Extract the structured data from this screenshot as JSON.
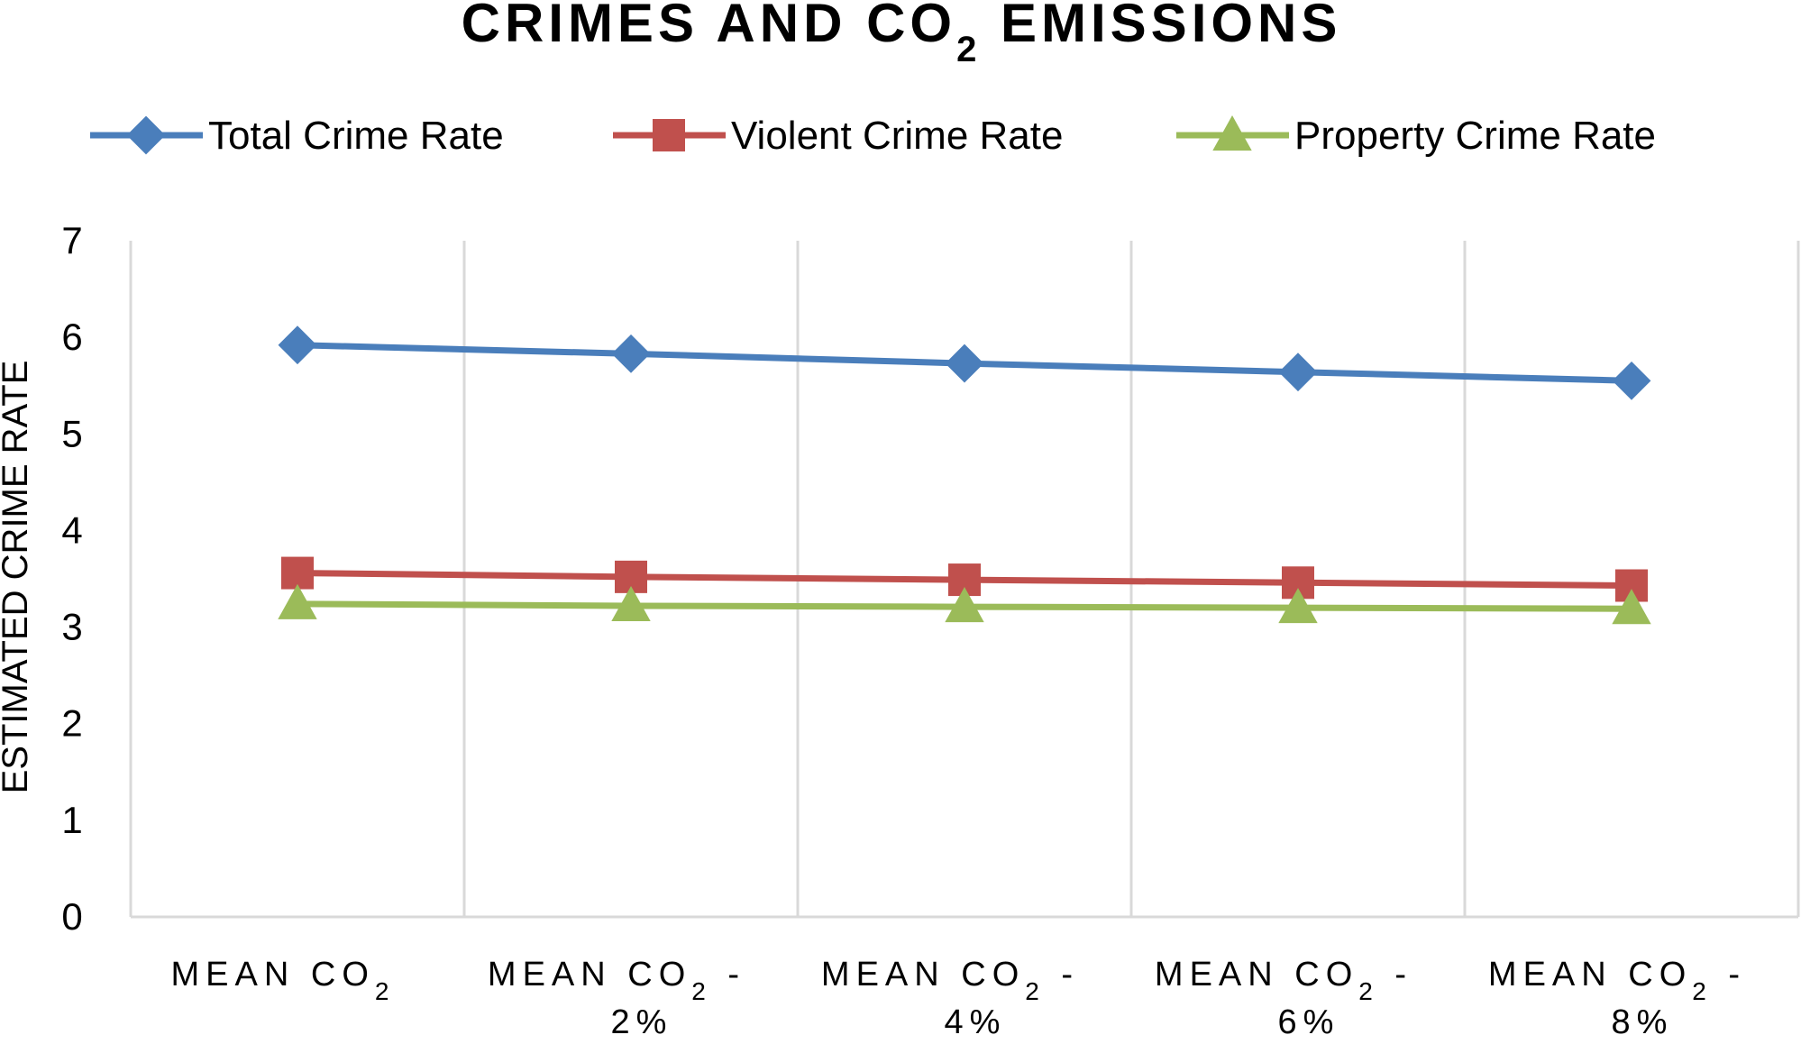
{
  "chart_data": {
    "type": "line",
    "title": {
      "main": "CRIMES AND CO",
      "sub": "2",
      "rest": " EMISSIONS"
    },
    "xlabel": "",
    "ylabel": "ESTIMATED CRIME RATE",
    "ylim": [
      0,
      7
    ],
    "yticks": [
      0,
      1,
      2,
      3,
      4,
      5,
      6,
      7
    ],
    "grid": "vertical",
    "legend_position": "top",
    "categories": [
      {
        "line1": "MEAN CO",
        "sub": "2",
        "tail": "",
        "line2": ""
      },
      {
        "line1": "MEAN CO",
        "sub": "2",
        "tail": " -",
        "line2": "2%"
      },
      {
        "line1": "MEAN CO",
        "sub": "2",
        "tail": " -",
        "line2": "4%"
      },
      {
        "line1": "MEAN CO",
        "sub": "2",
        "tail": " -",
        "line2": "6%"
      },
      {
        "line1": "MEAN CO",
        "sub": "2",
        "tail": " -",
        "line2": "8%"
      }
    ],
    "series": [
      {
        "name": "Total Crime Rate",
        "color": "#4A7EBB",
        "marker": "diamond",
        "values": [
          5.92,
          5.83,
          5.73,
          5.64,
          5.55
        ]
      },
      {
        "name": "Violent Crime Rate",
        "color": "#C0504D",
        "marker": "square",
        "values": [
          3.56,
          3.52,
          3.49,
          3.46,
          3.43
        ]
      },
      {
        "name": "Property Crime Rate",
        "color": "#9BBB59",
        "marker": "triangle",
        "values": [
          3.24,
          3.22,
          3.21,
          3.2,
          3.19
        ]
      }
    ],
    "colors": {
      "grid": "#d9d9d9",
      "axis": "#d9d9d9",
      "text": "#000000"
    }
  }
}
